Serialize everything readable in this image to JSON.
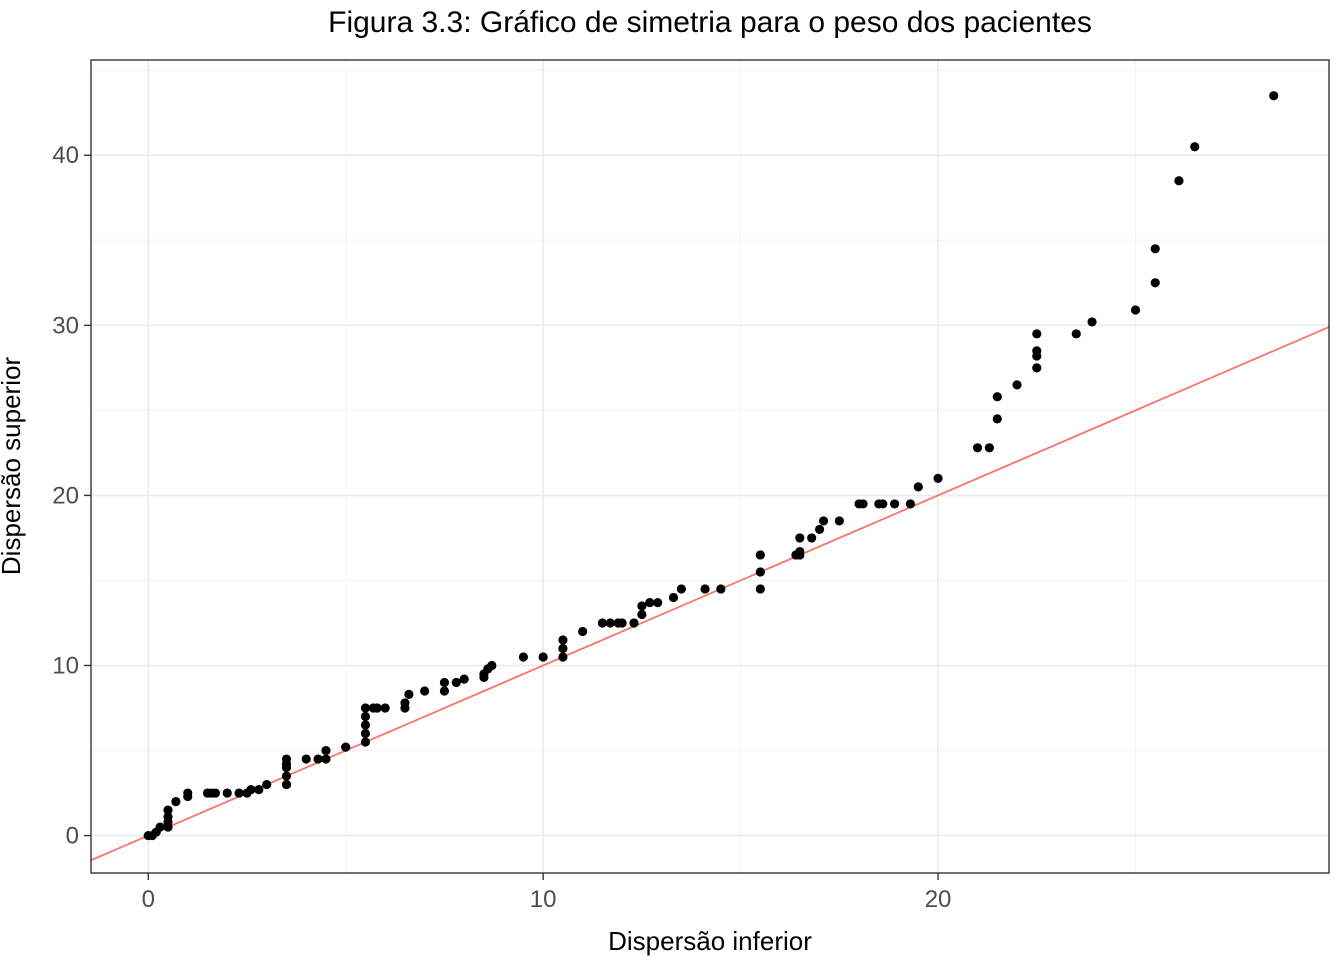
{
  "chart_data": {
    "type": "scatter",
    "title": "Figura 3.3: Gráfico de simetria para o peso dos pacientes",
    "xlabel": "Dispersão inferior",
    "ylabel": "Dispersão superior",
    "xlim": [
      -1.45,
      29.9
    ],
    "ylim": [
      -2.2,
      45.6
    ],
    "x_ticks": [
      0,
      10,
      20
    ],
    "y_ticks": [
      0,
      10,
      20,
      30,
      40
    ],
    "x_tick_labels": [
      "0",
      "10",
      "20"
    ],
    "y_tick_labels": [
      "0",
      "10",
      "20",
      "30",
      "40"
    ],
    "grid": true,
    "reference_line": {
      "intercept": 0,
      "slope": 1,
      "color": "#f8766d"
    },
    "point_color": "#000000",
    "series": [
      {
        "x": [
          0,
          0.1,
          0.2,
          0.3,
          0.5,
          0.5,
          0.5,
          0.5,
          0.7,
          1,
          1,
          1.5,
          1.6,
          1.7,
          2,
          2.3,
          2.5,
          2.6,
          2.8,
          3,
          3.5,
          3.5,
          3.5,
          3.5,
          3.5,
          3.5,
          4,
          4.3,
          4.5,
          4.5,
          5,
          5.5,
          5.5,
          5.5,
          5.5,
          5.5,
          5.7,
          5.8,
          6,
          6.5,
          6.5,
          6.6,
          7,
          7.5,
          7.5,
          7.8,
          8,
          8.5,
          8.5,
          8.6,
          8.7,
          9.5,
          10,
          10.5,
          10.5,
          10.5,
          11,
          11.5,
          11.7,
          11.9,
          12,
          12.3,
          12.5,
          12.5,
          12.7,
          12.9,
          13.3,
          13.5,
          14.1,
          14.5,
          15.5,
          15.5,
          15.5,
          16.4,
          16.5,
          16.5,
          16.5,
          16.8,
          17,
          17.1,
          17.5,
          18,
          18.1,
          18.5,
          18.6,
          18.9,
          19.3,
          19.5,
          20,
          21,
          21.3,
          21.5,
          21.5,
          22,
          22.5,
          22.5,
          22.5,
          22.5,
          23.5,
          23.9,
          25,
          25.5,
          25.5,
          26.1,
          26.5,
          28.5
        ],
        "y": [
          0,
          0,
          0.2,
          0.5,
          0.5,
          0.8,
          1.1,
          1.5,
          2,
          2.3,
          2.5,
          2.5,
          2.5,
          2.5,
          2.5,
          2.5,
          2.5,
          2.7,
          2.7,
          3,
          3,
          3,
          3.5,
          4,
          4.2,
          4.5,
          4.5,
          4.5,
          4.5,
          5,
          5.2,
          5.5,
          6,
          6.5,
          7,
          7.5,
          7.5,
          7.5,
          7.5,
          7.5,
          7.8,
          8.3,
          8.5,
          8.5,
          9,
          9,
          9.2,
          9.3,
          9.5,
          9.8,
          10,
          10.5,
          10.5,
          10.5,
          11,
          11.5,
          12,
          12.5,
          12.5,
          12.5,
          12.5,
          12.5,
          13,
          13.5,
          13.7,
          13.7,
          14,
          14.5,
          14.5,
          14.5,
          14.5,
          15.5,
          16.5,
          16.5,
          16.5,
          16.7,
          17.5,
          17.5,
          18,
          18.5,
          18.5,
          19.5,
          19.5,
          19.5,
          19.5,
          19.5,
          19.5,
          20.5,
          21,
          22.8,
          22.8,
          24.5,
          25.8,
          26.5,
          27.5,
          28.2,
          28.5,
          29.5,
          29.5,
          30.2,
          30.9,
          32.5,
          34.5,
          38.5,
          40.5,
          43.5
        ]
      }
    ]
  }
}
